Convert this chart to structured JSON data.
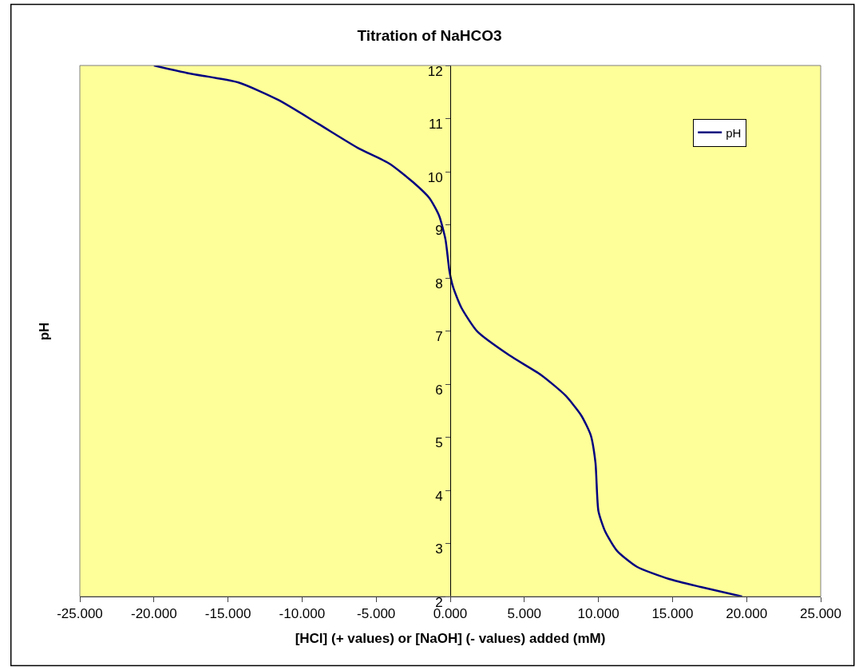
{
  "chart_data": {
    "type": "line",
    "title": "Titration of NaHCO3",
    "xlabel": "[HCl] (+ values) or [NaOH] (- values) added (mM)",
    "ylabel": "pH",
    "x": [
      -20.0,
      -17.6,
      -14.3,
      -11.6,
      -8.9,
      -6.25,
      -4.1,
      -2.5,
      -1.4,
      -0.75,
      -0.32,
      -0.05,
      0.2,
      0.75,
      1.83,
      4.0,
      6.14,
      7.76,
      8.84,
      9.48,
      9.8,
      10.0,
      10.45,
      11.26,
      12.6,
      14.76,
      16.9,
      19.7
    ],
    "series": [
      {
        "name": "pH",
        "color": "#000080",
        "values": [
          12.0,
          11.85,
          11.68,
          11.35,
          10.9,
          10.45,
          10.15,
          9.8,
          9.5,
          9.17,
          8.72,
          8.12,
          7.82,
          7.44,
          6.99,
          6.54,
          6.17,
          5.79,
          5.41,
          5.04,
          4.52,
          3.61,
          3.23,
          2.86,
          2.56,
          2.33,
          2.18,
          2.0
        ]
      }
    ],
    "xlim": [
      -25,
      25
    ],
    "xticks": [
      {
        "value": -25,
        "label": "-25.000"
      },
      {
        "value": -20,
        "label": "-20.000"
      },
      {
        "value": -15,
        "label": "-15.000"
      },
      {
        "value": -10,
        "label": "-10.000"
      },
      {
        "value": -5,
        "label": "-5.000"
      },
      {
        "value": 0,
        "label": "0.000"
      },
      {
        "value": 5,
        "label": "5.000"
      },
      {
        "value": 10,
        "label": "10.000"
      },
      {
        "value": 15,
        "label": "15.000"
      },
      {
        "value": 20,
        "label": "20.000"
      },
      {
        "value": 25,
        "label": "25.000"
      }
    ],
    "ylim": [
      2,
      12
    ],
    "yticks": [
      2,
      3,
      4,
      5,
      6,
      7,
      8,
      9,
      10,
      11,
      12
    ],
    "grid": false,
    "legend": "top right",
    "marker": "none",
    "line_style": "solid"
  }
}
